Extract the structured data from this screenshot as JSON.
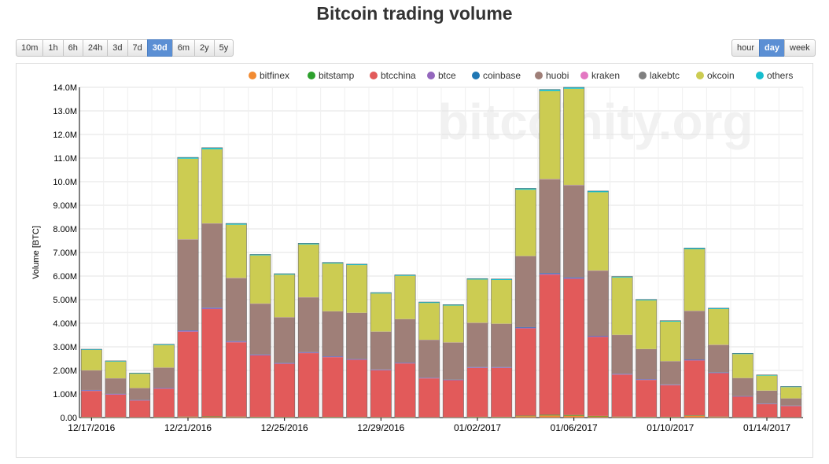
{
  "page": {
    "title": "Bitcoin trading volume"
  },
  "range_buttons": [
    {
      "label": "10m",
      "active": false
    },
    {
      "label": "1h",
      "active": false
    },
    {
      "label": "6h",
      "active": false
    },
    {
      "label": "24h",
      "active": false
    },
    {
      "label": "3d",
      "active": false
    },
    {
      "label": "7d",
      "active": false
    },
    {
      "label": "30d",
      "active": true
    },
    {
      "label": "6m",
      "active": false
    },
    {
      "label": "2y",
      "active": false
    },
    {
      "label": "5y",
      "active": false
    }
  ],
  "resolution_buttons": [
    {
      "label": "hour",
      "active": false
    },
    {
      "label": "day",
      "active": true
    },
    {
      "label": "week",
      "active": false
    }
  ],
  "colors": {
    "accent": "#5b8fd4",
    "bitfinex": "#f28b32",
    "bitstamp": "#2ca02c",
    "btcchina": "#e25a5a",
    "btce": "#9467bd",
    "coinbase": "#1f77b4",
    "huobi": "#9f7f78",
    "kraken": "#e377c2",
    "lakebtc": "#7f7f7f",
    "okcoin": "#cccc52",
    "others": "#17becf"
  },
  "chart_data": {
    "type": "bar",
    "stacked": true,
    "title": "Bitcoin trading volume",
    "watermark": "bitcoinity.org",
    "ylabel": "Volume [BTC]",
    "ylim": [
      0,
      14000000
    ],
    "yticks": [
      "0.00",
      "1.00M",
      "2.00M",
      "3.00M",
      "4.00M",
      "5.00M",
      "6.00M",
      "7.00M",
      "8.00M",
      "9.00M",
      "10.0M",
      "11.0M",
      "12.0M",
      "13.0M",
      "14.0M"
    ],
    "xtick_labels": [
      {
        "index": 0,
        "label": "12/17/2016"
      },
      {
        "index": 4,
        "label": "12/21/2016"
      },
      {
        "index": 8,
        "label": "12/25/2016"
      },
      {
        "index": 12,
        "label": "12/29/2016"
      },
      {
        "index": 16,
        "label": "01/02/2017"
      },
      {
        "index": 20,
        "label": "01/06/2017"
      },
      {
        "index": 24,
        "label": "01/10/2017"
      },
      {
        "index": 28,
        "label": "01/14/2017"
      }
    ],
    "categories": [
      "12/17/2016",
      "12/18/2016",
      "12/19/2016",
      "12/20/2016",
      "12/21/2016",
      "12/22/2016",
      "12/23/2016",
      "12/24/2016",
      "12/25/2016",
      "12/26/2016",
      "12/27/2016",
      "12/28/2016",
      "12/29/2016",
      "12/30/2016",
      "12/31/2016",
      "01/01/2017",
      "01/02/2017",
      "01/03/2017",
      "01/04/2017",
      "01/05/2017",
      "01/06/2017",
      "01/07/2017",
      "01/08/2017",
      "01/09/2017",
      "01/10/2017",
      "01/11/2017",
      "01/12/2017",
      "01/13/2017",
      "01/14/2017",
      "01/15/2017"
    ],
    "legend": [
      "bitfinex",
      "bitstamp",
      "btcchina",
      "btce",
      "coinbase",
      "huobi",
      "kraken",
      "lakebtc",
      "okcoin",
      "others"
    ],
    "legend_position": "top-right",
    "series": [
      {
        "name": "bitfinex",
        "values": [
          20000,
          18000,
          15000,
          22000,
          30000,
          35000,
          30000,
          25000,
          20000,
          22000,
          22000,
          20000,
          18000,
          18000,
          15000,
          15000,
          25000,
          25000,
          60000,
          90000,
          80000,
          50000,
          30000,
          25000,
          25000,
          70000,
          30000,
          15000,
          15000,
          12000
        ]
      },
      {
        "name": "bitstamp",
        "values": [
          8000,
          7000,
          6000,
          8000,
          12000,
          14000,
          12000,
          10000,
          9000,
          9000,
          9000,
          8000,
          8000,
          8000,
          7000,
          7000,
          10000,
          10000,
          20000,
          30000,
          30000,
          20000,
          12000,
          10000,
          10000,
          20000,
          12000,
          8000,
          7000,
          6000
        ]
      },
      {
        "name": "btcchina",
        "values": [
          1100000,
          950000,
          700000,
          1200000,
          3600000,
          4550000,
          3150000,
          2600000,
          2250000,
          2700000,
          2530000,
          2420000,
          1980000,
          2270000,
          1640000,
          1560000,
          2070000,
          2070000,
          3700000,
          5940000,
          5770000,
          3350000,
          1780000,
          1560000,
          1340000,
          2330000,
          1840000,
          860000,
          550000,
          470000
        ]
      },
      {
        "name": "btce",
        "values": [
          30000,
          25000,
          20000,
          25000,
          40000,
          45000,
          35000,
          30000,
          28000,
          30000,
          28000,
          26000,
          24000,
          24000,
          20000,
          20000,
          25000,
          25000,
          35000,
          40000,
          40000,
          30000,
          25000,
          25000,
          20000,
          30000,
          25000,
          20000,
          18000,
          15000
        ]
      },
      {
        "name": "coinbase",
        "values": [
          10000,
          9000,
          8000,
          10000,
          15000,
          17000,
          14000,
          12000,
          11000,
          12000,
          11000,
          10000,
          10000,
          10000,
          9000,
          9000,
          12000,
          12000,
          20000,
          25000,
          25000,
          15000,
          12000,
          10000,
          10000,
          15000,
          12000,
          9000,
          8000,
          7000
        ]
      },
      {
        "name": "huobi",
        "values": [
          830000,
          650000,
          500000,
          850000,
          3850000,
          3560000,
          2670000,
          2150000,
          1930000,
          2320000,
          1900000,
          1950000,
          1600000,
          1840000,
          1600000,
          1570000,
          1870000,
          1830000,
          3000000,
          3970000,
          3900000,
          2760000,
          1640000,
          1270000,
          980000,
          2050000,
          1160000,
          760000,
          540000,
          300000
        ]
      },
      {
        "name": "kraken",
        "values": [
          3000,
          3000,
          2000,
          3000,
          5000,
          6000,
          5000,
          4000,
          4000,
          4000,
          4000,
          4000,
          3000,
          3000,
          3000,
          3000,
          4000,
          4000,
          6000,
          8000,
          8000,
          5000,
          4000,
          3000,
          3000,
          5000,
          4000,
          3000,
          2000,
          2000
        ]
      },
      {
        "name": "lakebtc",
        "values": [
          5000,
          5000,
          4000,
          5000,
          8000,
          8000,
          7000,
          6000,
          6000,
          6000,
          6000,
          6000,
          5000,
          5000,
          5000,
          5000,
          6000,
          6000,
          8000,
          10000,
          10000,
          7000,
          6000,
          5000,
          5000,
          7000,
          6000,
          5000,
          4000,
          4000
        ]
      },
      {
        "name": "okcoin",
        "values": [
          864000,
          708000,
          605000,
          952000,
          3415000,
          3140000,
          2255000,
          2040000,
          1800000,
          2240000,
          2024000,
          2020000,
          1612000,
          1832000,
          1560000,
          1560000,
          1829000,
          1852000,
          2811000,
          3727000,
          4077000,
          3316000,
          2431000,
          2061000,
          1676000,
          2610000,
          1510000,
          1012000,
          636000,
          476000
        ]
      },
      {
        "name": "others",
        "values": [
          30000,
          30000,
          30000,
          35000,
          55000,
          65000,
          52000,
          43000,
          42000,
          47000,
          43000,
          42000,
          40000,
          40000,
          41000,
          40000,
          42000,
          42000,
          60000,
          70000,
          60000,
          52000,
          42000,
          41000,
          41000,
          53000,
          41000,
          32000,
          30000,
          28000
        ]
      }
    ]
  }
}
